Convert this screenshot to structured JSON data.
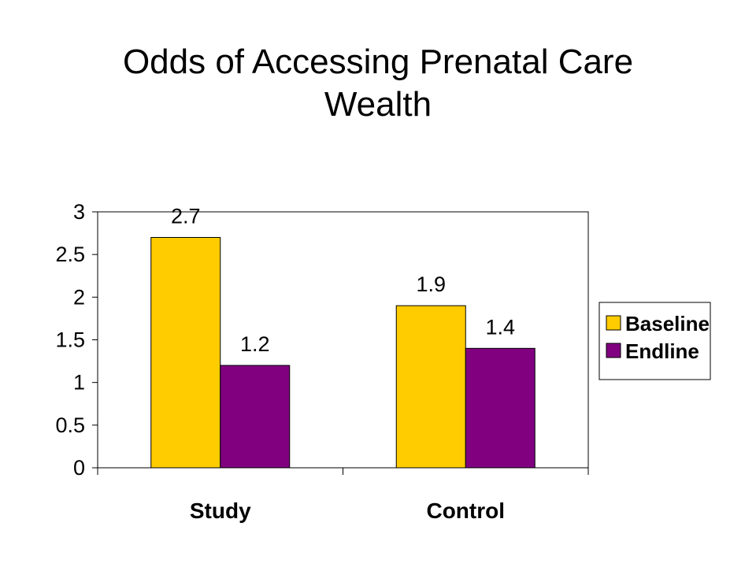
{
  "chart_data": {
    "type": "bar",
    "title": "Odds of Accessing Prenatal Care",
    "subtitle": "Wealth",
    "categories": [
      "Study",
      "Control"
    ],
    "series": [
      {
        "name": "Baseline",
        "color": "#FFCC00",
        "values": [
          2.7,
          1.9
        ]
      },
      {
        "name": "Endline",
        "color": "#800080",
        "values": [
          1.2,
          1.4
        ]
      }
    ],
    "data_labels": [
      [
        "2.7",
        "1.9"
      ],
      [
        "1.2",
        "1.4"
      ]
    ],
    "ylim": [
      0,
      3
    ],
    "yticks": [
      0,
      0.5,
      1,
      1.5,
      2,
      2.5,
      3
    ],
    "ytick_labels": [
      "0",
      "0.5",
      "1",
      "1.5",
      "2",
      "2.5",
      "3"
    ],
    "xlabel": "",
    "ylabel": "",
    "grid": false,
    "legend_position": "right"
  }
}
